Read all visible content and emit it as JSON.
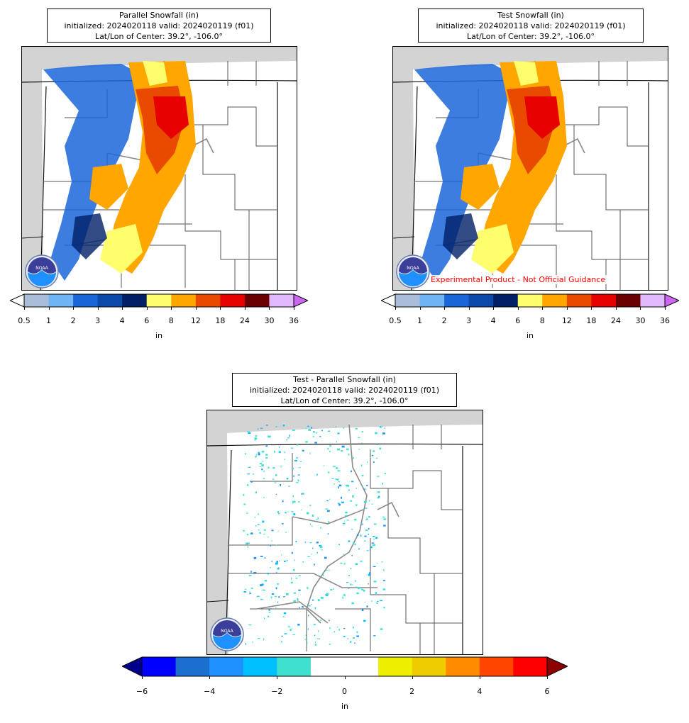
{
  "panels": {
    "parallel": {
      "title_line1": "Parallel Snowfall (in)",
      "title_line2": "initialized: 2024020118 valid: 2024020119 (f01)",
      "title_line3": "Lat/Lon of Center: 39.2°, -106.0°"
    },
    "test": {
      "title_line1": "Test Snowfall (in)",
      "title_line2": "initialized: 2024020118 valid: 2024020119 (f01)",
      "title_line3": "Lat/Lon of Center: 39.2°, -106.0°",
      "disclaimer": "Experimental Product - Not Official Guidance"
    },
    "diff": {
      "title_line1": "Test - Parallel Snowfall (in)",
      "title_line2": "initialized: 2024020118 valid: 2024020119 (f01)",
      "title_line3": "Lat/Lon of Center: 39.2°, -106.0°"
    }
  },
  "snow_colorbar": {
    "unit": "in",
    "ticks": [
      "0.5",
      "1",
      "2",
      "3",
      "4",
      "6",
      "8",
      "12",
      "18",
      "24",
      "30",
      "36"
    ],
    "colors": [
      "#a9bcd8",
      "#6fb5f5",
      "#1a66d9",
      "#0b4aa8",
      "#001f66",
      "#ffff6e",
      "#ffa600",
      "#e84b00",
      "#e60000",
      "#6b0000",
      "#e2b8ff"
    ],
    "under_color": "#ffffff",
    "over_color": "#cc66ee"
  },
  "diff_colorbar": {
    "unit": "in",
    "ticks": [
      "−6",
      "−4",
      "−2",
      "0",
      "2",
      "4",
      "6"
    ],
    "colors": [
      "#0000ff",
      "#1a6fcf",
      "#1e90ff",
      "#00bfff",
      "#40e0d0",
      "#ffffff",
      "#ffffff",
      "#eeee00",
      "#eecc00",
      "#ff8c00",
      "#ff4500",
      "#ff0000"
    ],
    "under_color": "#00008b",
    "over_color": "#8b0000"
  },
  "logo_text": "NOAA"
}
